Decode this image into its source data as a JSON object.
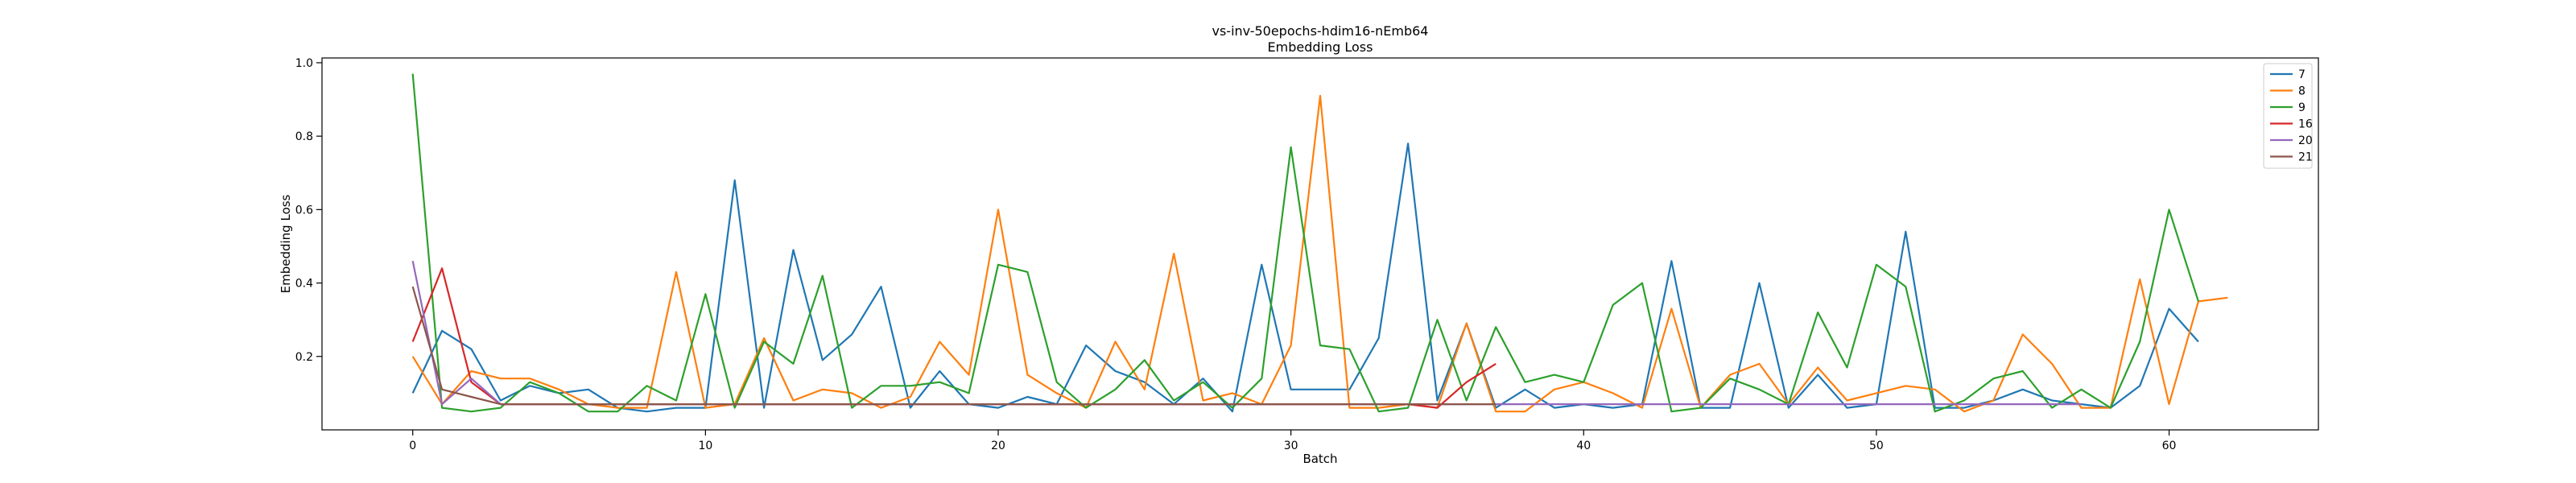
{
  "chart_data": {
    "type": "line",
    "title": "vs-inv-50epochs-hdim16-nEmb64",
    "subtitle": "Embedding Loss",
    "xlabel": "Batch",
    "ylabel": "Embedding Loss",
    "xlim": [
      -3.1,
      65.1
    ],
    "ylim": [
      0.0,
      1.013
    ],
    "xticks": [
      0,
      10,
      20,
      30,
      40,
      50,
      60
    ],
    "yticks": [
      0.2,
      0.4,
      0.6,
      0.8,
      1.0
    ],
    "grid": false,
    "legend_position": "top-right",
    "series": [
      {
        "name": "7",
        "color": "#1f77b4",
        "values": [
          0.1,
          0.27,
          0.22,
          0.08,
          0.12,
          0.1,
          0.11,
          0.06,
          0.05,
          0.06,
          0.06,
          0.68,
          0.06,
          0.49,
          0.19,
          0.26,
          0.39,
          0.06,
          0.16,
          0.07,
          0.06,
          0.09,
          0.07,
          0.23,
          0.16,
          0.13,
          0.07,
          0.14,
          0.05,
          0.45,
          0.11,
          0.11,
          0.11,
          0.25,
          0.78,
          0.08,
          0.29,
          0.06,
          0.11,
          0.06,
          0.07,
          0.06,
          0.07,
          0.46,
          0.06,
          0.06,
          0.4,
          0.06,
          0.15,
          0.06,
          0.07,
          0.54,
          0.06,
          0.06,
          0.08,
          0.11,
          0.08,
          0.07,
          0.06,
          0.12,
          0.33,
          0.24
        ]
      },
      {
        "name": "8",
        "color": "#ff7f0e",
        "values": [
          0.2,
          0.07,
          0.16,
          0.14,
          0.14,
          0.11,
          0.07,
          0.06,
          0.06,
          0.43,
          0.06,
          0.07,
          0.25,
          0.08,
          0.11,
          0.1,
          0.06,
          0.09,
          0.24,
          0.15,
          0.6,
          0.15,
          0.1,
          0.06,
          0.24,
          0.11,
          0.48,
          0.08,
          0.1,
          0.07,
          0.23,
          0.91,
          0.06,
          0.06,
          0.07,
          0.06,
          0.29,
          0.05,
          0.05,
          0.11,
          0.13,
          0.1,
          0.06,
          0.33,
          0.06,
          0.15,
          0.18,
          0.07,
          0.17,
          0.08,
          0.1,
          0.12,
          0.11,
          0.05,
          0.08,
          0.26,
          0.18,
          0.06,
          0.06,
          0.41,
          0.07,
          0.35,
          0.36
        ]
      },
      {
        "name": "9",
        "color": "#2ca02c",
        "values": [
          0.97,
          0.06,
          0.05,
          0.06,
          0.13,
          0.1,
          0.05,
          0.05,
          0.12,
          0.08,
          0.37,
          0.06,
          0.24,
          0.18,
          0.42,
          0.06,
          0.12,
          0.12,
          0.13,
          0.1,
          0.45,
          0.43,
          0.13,
          0.06,
          0.11,
          0.19,
          0.08,
          0.13,
          0.06,
          0.14,
          0.77,
          0.23,
          0.22,
          0.05,
          0.06,
          0.3,
          0.08,
          0.28,
          0.13,
          0.15,
          0.13,
          0.34,
          0.4,
          0.05,
          0.06,
          0.14,
          0.11,
          0.07,
          0.32,
          0.17,
          0.45,
          0.39,
          0.05,
          0.08,
          0.14,
          0.16,
          0.06,
          0.11,
          0.06,
          0.24,
          0.6,
          0.35
        ]
      },
      {
        "name": "16",
        "color": "#d62728",
        "values": [
          0.24,
          0.44,
          0.13,
          0.07,
          0.07,
          0.07,
          0.07,
          0.07,
          0.07,
          0.07,
          0.07,
          0.07,
          0.07,
          0.07,
          0.07,
          0.07,
          0.07,
          0.07,
          0.07,
          0.07,
          0.07,
          0.07,
          0.07,
          0.07,
          0.07,
          0.07,
          0.07,
          0.07,
          0.07,
          0.07,
          0.07,
          0.07,
          0.07,
          0.07,
          0.07,
          0.06,
          0.13,
          0.18
        ]
      },
      {
        "name": "20",
        "color": "#9467bd",
        "values": [
          0.46,
          0.07,
          0.14,
          0.07,
          0.07,
          0.07,
          0.07,
          0.07,
          0.07,
          0.07,
          0.07,
          0.07,
          0.07,
          0.07,
          0.07,
          0.07,
          0.07,
          0.07,
          0.07,
          0.07,
          0.07,
          0.07,
          0.07,
          0.07,
          0.07,
          0.07,
          0.07,
          0.07,
          0.07,
          0.07,
          0.07,
          0.07,
          0.07,
          0.07,
          0.07,
          0.07,
          0.07,
          0.07,
          0.07,
          0.07,
          0.07,
          0.07,
          0.07,
          0.07,
          0.07,
          0.07,
          0.07,
          0.07,
          0.07,
          0.07,
          0.07,
          0.07,
          0.07,
          0.07,
          0.07,
          0.07,
          0.07,
          0.07
        ]
      },
      {
        "name": "21",
        "color": "#8c564b",
        "values": [
          0.39,
          0.11,
          0.09,
          0.07,
          0.07,
          0.07,
          0.07,
          0.07,
          0.07,
          0.07,
          0.07,
          0.07,
          0.07,
          0.07,
          0.07,
          0.07,
          0.07,
          0.07,
          0.07,
          0.07,
          0.07,
          0.07,
          0.07,
          0.07,
          0.07,
          0.07,
          0.07,
          0.07,
          0.07,
          0.07,
          0.07,
          0.07,
          0.07,
          0.07,
          0.07,
          0.07,
          0.07,
          0.07
        ]
      }
    ]
  }
}
